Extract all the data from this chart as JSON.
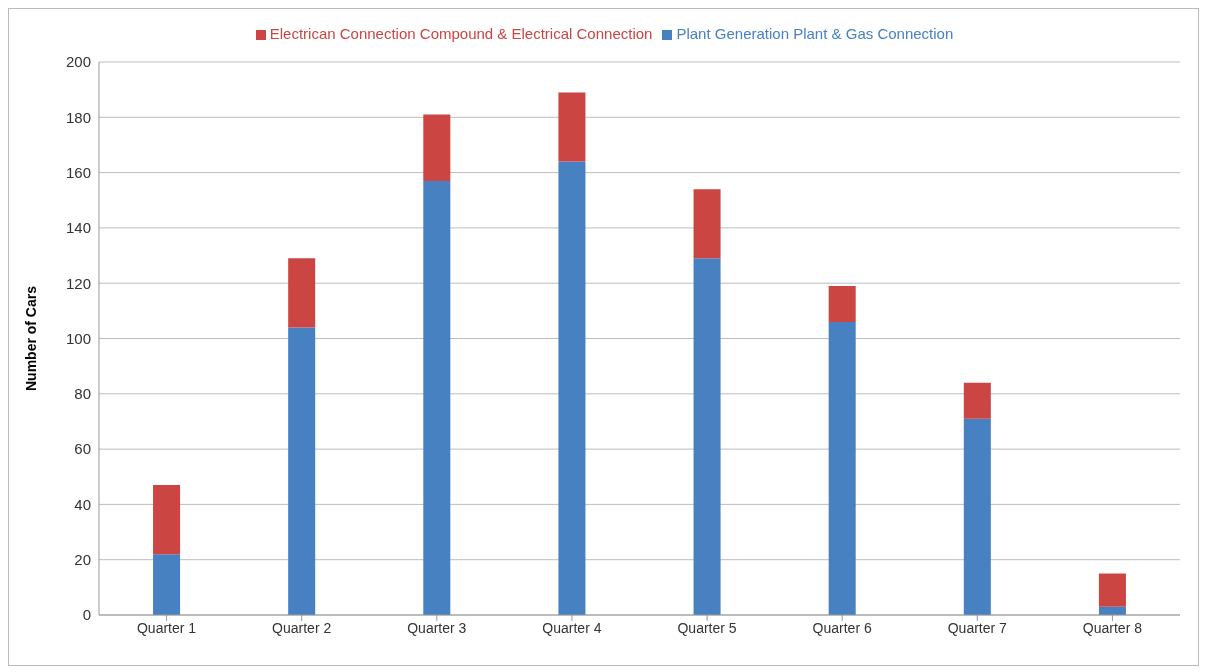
{
  "chart_data": {
    "type": "bar",
    "stacked": true,
    "ylabel": "Number of Cars",
    "categories": [
      "Quarter 1",
      "Quarter 2",
      "Quarter 3",
      "Quarter 4",
      "Quarter 5",
      "Quarter 6",
      "Quarter 7",
      "Quarter 8"
    ],
    "series": [
      {
        "name": "Plant Generation Plant & Gas Connection",
        "color": "#4781c2",
        "values": [
          22,
          104,
          157,
          164,
          129,
          106,
          71,
          3
        ]
      },
      {
        "name": "Electrican Connection Compound & Electrical Connection",
        "color": "#cb4543",
        "values": [
          25,
          25,
          24,
          25,
          25,
          13,
          13,
          12
        ]
      }
    ],
    "ylim": [
      0,
      200
    ],
    "yticks": [
      0,
      20,
      40,
      60,
      80,
      100,
      120,
      140,
      160,
      180,
      200
    ],
    "grid": "y",
    "legend": "top"
  }
}
